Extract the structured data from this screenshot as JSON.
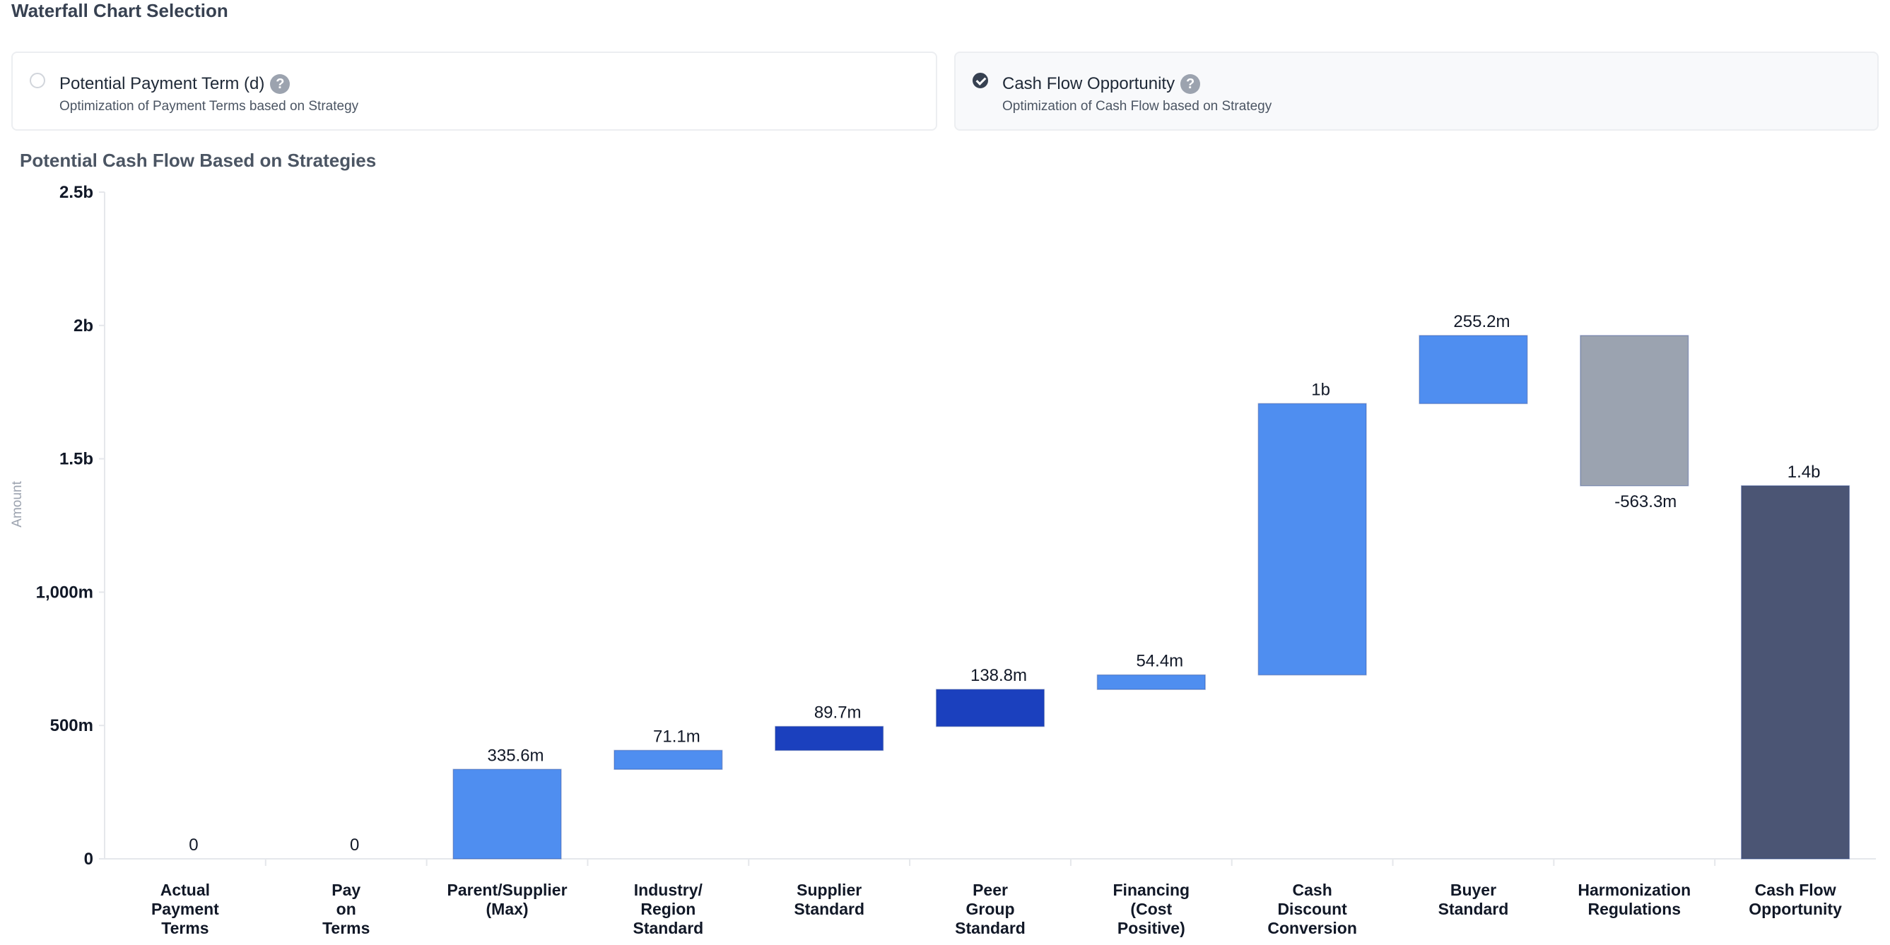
{
  "section": {
    "title": "Waterfall Chart Selection"
  },
  "options": [
    {
      "title": "Potential Payment Term (d)",
      "subtitle": "Optimization of Payment Terms based on Strategy",
      "selected": false,
      "help": "?"
    },
    {
      "title": "Cash Flow Opportunity",
      "subtitle": "Optimization of Cash Flow based on Strategy",
      "selected": true,
      "help": "?"
    }
  ],
  "chart_title": "Potential Cash Flow Based on Strategies",
  "colors": {
    "increase": "#4f8ef0",
    "increase_dark": "#1b40be",
    "decrease": "#9ba3b0",
    "total": "#4b5574",
    "grid": "#e5e7eb"
  },
  "chart_data": {
    "type": "bar",
    "subtype": "waterfall",
    "title": "Potential Cash Flow Based on Strategies",
    "ylabel": "Amount",
    "xlabel": "",
    "ylim": [
      0,
      2500
    ],
    "y_unit": "m",
    "y_ticks": [
      {
        "value": 0,
        "label": "0"
      },
      {
        "value": 500,
        "label": "500m"
      },
      {
        "value": 1000,
        "label": "1,000m"
      },
      {
        "value": 1500,
        "label": "1.5b"
      },
      {
        "value": 2000,
        "label": "2b"
      },
      {
        "value": 2500,
        "label": "2.5b"
      }
    ],
    "categories": [
      [
        "Actual",
        "Payment",
        "Terms"
      ],
      [
        "Pay",
        "on",
        "Terms"
      ],
      [
        "Parent/Supplier",
        "(Max)"
      ],
      [
        "Industry/",
        "Region",
        "Standard"
      ],
      [
        "Supplier",
        "Standard"
      ],
      [
        "Peer",
        "Group",
        "Standard"
      ],
      [
        "Financing",
        "(Cost",
        "Positive)"
      ],
      [
        "Cash",
        "Discount",
        "Conversion"
      ],
      [
        "Buyer",
        "Standard"
      ],
      [
        "Harmonization",
        "Regulations"
      ],
      [
        "Cash Flow",
        "Opportunity"
      ]
    ],
    "bars": [
      {
        "start": 0,
        "end": 0,
        "label": "0",
        "kind": "increase"
      },
      {
        "start": 0,
        "end": 0,
        "label": "0",
        "kind": "increase"
      },
      {
        "start": 0,
        "end": 335.6,
        "label": "335.6m",
        "kind": "increase"
      },
      {
        "start": 335.6,
        "end": 406.7,
        "label": "71.1m",
        "kind": "increase"
      },
      {
        "start": 406.7,
        "end": 496.4,
        "label": "89.7m",
        "kind": "increase_dark"
      },
      {
        "start": 496.4,
        "end": 635.2,
        "label": "138.8m",
        "kind": "increase_dark"
      },
      {
        "start": 635.2,
        "end": 689.6,
        "label": "54.4m",
        "kind": "increase"
      },
      {
        "start": 689.6,
        "end": 1707,
        "label": "1b",
        "kind": "increase"
      },
      {
        "start": 1707,
        "end": 1962.2,
        "label": "255.2m",
        "kind": "increase"
      },
      {
        "start": 1962.2,
        "end": 1398.9,
        "label": "-563.3m",
        "kind": "decrease"
      },
      {
        "start": 0,
        "end": 1398.9,
        "label": "1.4b",
        "kind": "total"
      }
    ]
  }
}
